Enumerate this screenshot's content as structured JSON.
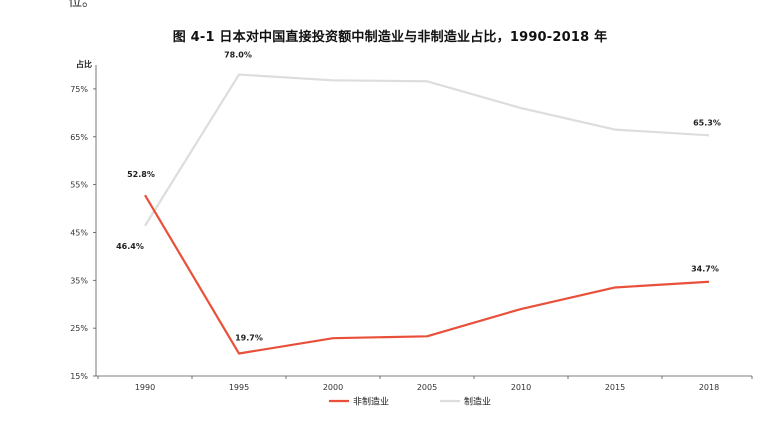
{
  "page": {
    "top_fragment": "位。"
  },
  "chart_data": {
    "type": "line",
    "title": "图  4-1  日本对中国直接投资额中制造业与非制造业占比，1990-2018 年",
    "ylabel": "占比",
    "xlabel": "",
    "categories": [
      "1990",
      "1995",
      "2000",
      "2005",
      "2010",
      "2015",
      "2018"
    ],
    "ylim": [
      15,
      80
    ],
    "yticks": [
      15,
      25,
      35,
      45,
      55,
      65,
      75
    ],
    "ytick_labels": [
      "15%",
      "25%",
      "35%",
      "45%",
      "55%",
      "65%",
      "75%"
    ],
    "grid": false,
    "legend_position": "bottom",
    "series": [
      {
        "name": "非制造业",
        "color": "#e8503a",
        "values": [
          52.8,
          19.7,
          22.9,
          23.3,
          29.0,
          33.5,
          34.7
        ],
        "labels": {
          "0": "52.8%",
          "1": "19.7%",
          "6": "34.7%"
        }
      },
      {
        "name": "制造业",
        "color": "#dddddd",
        "values": [
          46.4,
          78.0,
          76.8,
          76.6,
          71.0,
          66.5,
          65.3
        ],
        "labels": {
          "0": "46.4%",
          "1": "78.0%",
          "6": "65.3%"
        }
      }
    ]
  }
}
